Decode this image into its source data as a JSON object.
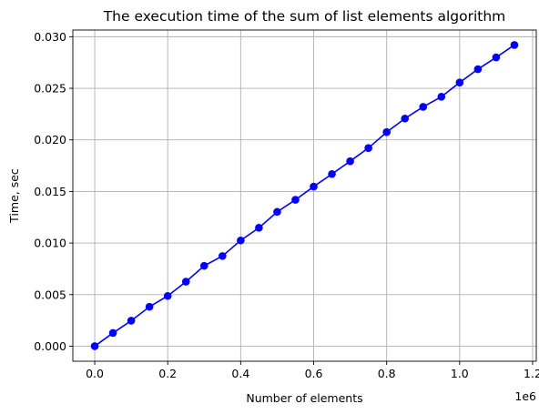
{
  "chart_data": {
    "type": "line",
    "title": "The execution time of the sum of list elements algorithm",
    "xlabel": "Number of elements",
    "ylabel": "Time, sec",
    "x_offset_label": "1e6",
    "xlim": [
      -60000,
      1210000
    ],
    "ylim": [
      -0.00146,
      0.03065
    ],
    "grid": true,
    "x_ticks": [
      0,
      200000,
      400000,
      600000,
      800000,
      1000000,
      1200000
    ],
    "x_tick_labels": [
      "0.0",
      "0.2",
      "0.4",
      "0.6",
      "0.8",
      "1.0",
      "1.2"
    ],
    "y_ticks": [
      0,
      0.005,
      0.01,
      0.015,
      0.02,
      0.025,
      0.03
    ],
    "y_tick_labels": [
      "0.000",
      "0.005",
      "0.010",
      "0.015",
      "0.020",
      "0.025",
      "0.030"
    ],
    "series": [
      {
        "color": "#0000ff",
        "marker": "circle",
        "x": [
          0,
          50000,
          100000,
          150000,
          200000,
          250000,
          300000,
          350000,
          400000,
          450000,
          500000,
          550000,
          600000,
          650000,
          700000,
          750000,
          800000,
          850000,
          900000,
          950000,
          1000000,
          1050000,
          1100000,
          1150000
        ],
        "y": [
          0.0,
          0.00128,
          0.00247,
          0.00382,
          0.00487,
          0.00625,
          0.00779,
          0.00874,
          0.01025,
          0.01148,
          0.01302,
          0.01419,
          0.01547,
          0.01669,
          0.01793,
          0.01921,
          0.02075,
          0.02207,
          0.0232,
          0.02418,
          0.02556,
          0.02685,
          0.028,
          0.0292
        ]
      }
    ]
  }
}
